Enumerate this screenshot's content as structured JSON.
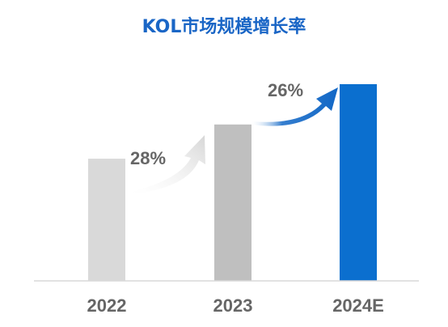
{
  "chart_data": {
    "type": "bar",
    "title": "KOL市场规模增长率",
    "xlabel": "",
    "ylabel": "",
    "categories": [
      "2022",
      "2023",
      "2024E"
    ],
    "values": [
      100,
      128,
      161
    ],
    "growth_annotations": [
      {
        "from": "2022",
        "to": "2023",
        "label": "28%"
      },
      {
        "from": "2023",
        "to": "2024E",
        "label": "26%"
      }
    ],
    "ylim": [
      0,
      161
    ],
    "grid": false,
    "legend": "none"
  },
  "colors": {
    "title": "#1a66c6",
    "bars": [
      "#d9d9d9",
      "#bfbfbf",
      "#0b6fcf"
    ],
    "arrows": [
      "#d6d6d6",
      "#1167c6"
    ],
    "tick_label": "#666666",
    "growth_label": "#666666",
    "baseline": "#d9d9d9"
  }
}
